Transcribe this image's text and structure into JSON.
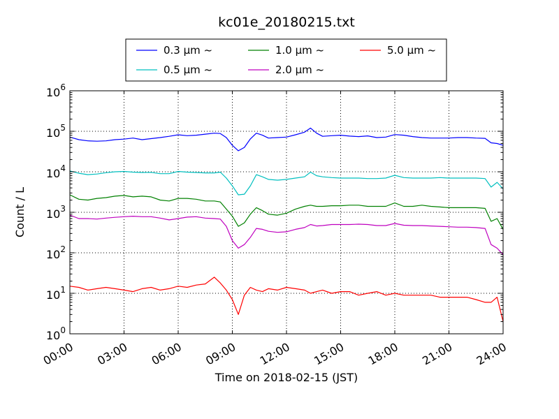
{
  "chart_data": {
    "type": "line",
    "title": "kc01e_20180215.txt",
    "xlabel": "Time on 2018-02-15 (JST)",
    "ylabel": "Count / L",
    "yscale": "log",
    "ylim": [
      1,
      1000000
    ],
    "xlim": [
      "00:00",
      "24:00"
    ],
    "x_tick_labels": [
      "00:00",
      "03:00",
      "06:00",
      "09:00",
      "12:00",
      "15:00",
      "18:00",
      "21:00",
      "24:00"
    ],
    "y_tick_labels": [
      {
        "base": "10",
        "exp": "0"
      },
      {
        "base": "10",
        "exp": "1"
      },
      {
        "base": "10",
        "exp": "2"
      },
      {
        "base": "10",
        "exp": "3"
      },
      {
        "base": "10",
        "exp": "4"
      },
      {
        "base": "10",
        "exp": "5"
      },
      {
        "base": "10",
        "exp": "6"
      }
    ],
    "grid": true,
    "legend_position": "top-center",
    "x": [
      "00:00",
      "00:30",
      "01:00",
      "01:30",
      "02:00",
      "02:30",
      "03:00",
      "03:30",
      "04:00",
      "04:30",
      "05:00",
      "05:30",
      "06:00",
      "06:30",
      "07:00",
      "07:30",
      "08:00",
      "08:20",
      "08:40",
      "09:00",
      "09:20",
      "09:40",
      "10:00",
      "10:20",
      "10:40",
      "11:00",
      "11:30",
      "12:00",
      "12:30",
      "13:00",
      "13:20",
      "13:40",
      "14:00",
      "14:30",
      "15:00",
      "15:30",
      "16:00",
      "16:30",
      "17:00",
      "17:30",
      "18:00",
      "18:30",
      "19:00",
      "19:30",
      "20:00",
      "20:30",
      "21:00",
      "21:30",
      "22:00",
      "22:30",
      "23:00",
      "23:20",
      "23:40",
      "24:00"
    ],
    "series": [
      {
        "name": "0.3 μm ~",
        "color": "#0000ff",
        "values": [
          72000,
          62000,
          58000,
          57000,
          58000,
          62000,
          64000,
          68000,
          62000,
          66000,
          70000,
          75000,
          82000,
          78000,
          80000,
          85000,
          90000,
          88000,
          70000,
          45000,
          33000,
          40000,
          65000,
          90000,
          80000,
          68000,
          70000,
          72000,
          82000,
          95000,
          120000,
          90000,
          75000,
          78000,
          80000,
          76000,
          74000,
          77000,
          70000,
          72000,
          83000,
          80000,
          74000,
          70000,
          68000,
          68000,
          68000,
          70000,
          70000,
          68000,
          67000,
          52000,
          50000,
          45000
        ]
      },
      {
        "name": "0.5 μm ~",
        "color": "#00bfbf",
        "values": [
          10500,
          9200,
          8500,
          8800,
          9500,
          10000,
          10200,
          9800,
          9600,
          9700,
          9000,
          9000,
          10200,
          9800,
          9600,
          9400,
          9400,
          9800,
          7000,
          4500,
          2700,
          2800,
          4500,
          8500,
          7500,
          6500,
          6200,
          6500,
          7000,
          7500,
          9800,
          8000,
          7500,
          7200,
          7000,
          7000,
          7000,
          6800,
          6800,
          7000,
          8200,
          7200,
          7000,
          7000,
          7000,
          7200,
          7000,
          7000,
          7000,
          7000,
          6800,
          4200,
          5500,
          3800
        ]
      },
      {
        "name": "1.0 μm ~",
        "color": "#008000",
        "values": [
          2700,
          2100,
          2000,
          2200,
          2300,
          2500,
          2600,
          2400,
          2500,
          2400,
          2000,
          1900,
          2200,
          2200,
          2100,
          1900,
          1900,
          1800,
          1200,
          800,
          450,
          550,
          900,
          1300,
          1100,
          900,
          850,
          950,
          1200,
          1400,
          1500,
          1400,
          1400,
          1450,
          1450,
          1500,
          1500,
          1400,
          1400,
          1400,
          1700,
          1400,
          1400,
          1500,
          1400,
          1350,
          1300,
          1300,
          1300,
          1300,
          1250,
          600,
          700,
          380
        ]
      },
      {
        "name": "2.0 μm ~",
        "color": "#bf00bf",
        "values": [
          850,
          700,
          700,
          680,
          720,
          750,
          780,
          800,
          780,
          780,
          720,
          650,
          700,
          760,
          780,
          720,
          700,
          680,
          450,
          200,
          130,
          160,
          240,
          400,
          380,
          340,
          320,
          330,
          380,
          420,
          500,
          460,
          470,
          500,
          500,
          500,
          510,
          500,
          470,
          470,
          530,
          480,
          470,
          470,
          460,
          450,
          440,
          430,
          430,
          420,
          400,
          160,
          130,
          90
        ]
      },
      {
        "name": "5.0 μm ~",
        "color": "#ff0000",
        "values": [
          15,
          14,
          12,
          13,
          14,
          13,
          12,
          11,
          13,
          14,
          12,
          13,
          15,
          14,
          16,
          17,
          25,
          18,
          12,
          7,
          3,
          9,
          14,
          12,
          11,
          13,
          12,
          14,
          13,
          12,
          10,
          11,
          12,
          10,
          11,
          11,
          9,
          10,
          11,
          9,
          10,
          9,
          9,
          9,
          9,
          8,
          8,
          8,
          8,
          7,
          6,
          6,
          8,
          2
        ]
      }
    ]
  }
}
